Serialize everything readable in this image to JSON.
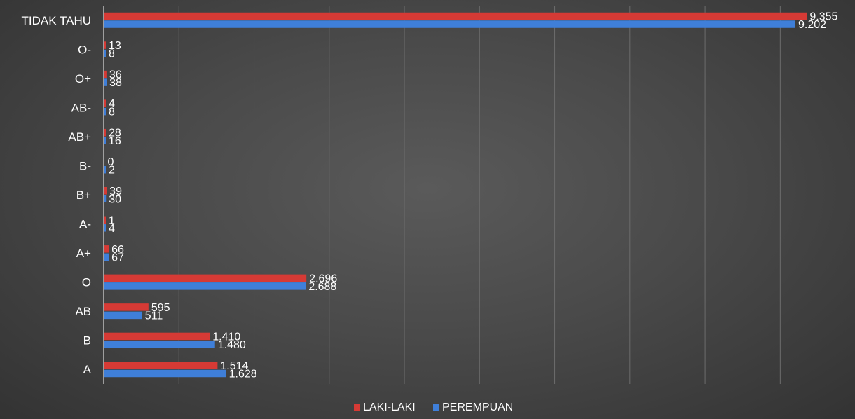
{
  "chart_data": {
    "type": "bar",
    "orientation": "horizontal",
    "categories": [
      "A",
      "B",
      "AB",
      "O",
      "A+",
      "A-",
      "B+",
      "B-",
      "AB+",
      "AB-",
      "O+",
      "O-",
      "TIDAK TAHU"
    ],
    "series": [
      {
        "name": "LAKI-LAKI",
        "color": "#d63a35",
        "values": [
          1514,
          1410,
          595,
          2696,
          66,
          1,
          39,
          0,
          28,
          4,
          36,
          13,
          9355
        ],
        "labels": [
          "1.514",
          "1.410",
          "595",
          "2.696",
          "66",
          "1",
          "39",
          "0",
          "28",
          "4",
          "36",
          "13",
          "9.355"
        ]
      },
      {
        "name": "PEREMPUAN",
        "color": "#3f7fd9",
        "values": [
          1628,
          1480,
          511,
          2688,
          67,
          4,
          30,
          2,
          16,
          8,
          38,
          8,
          9202
        ],
        "labels": [
          "1.628",
          "1.480",
          "511",
          "2.688",
          "67",
          "4",
          "30",
          "2",
          "16",
          "8",
          "38",
          "8",
          "9.202"
        ]
      }
    ],
    "xlim": [
      0,
      10000
    ],
    "grid": true,
    "legend": "bottom"
  }
}
